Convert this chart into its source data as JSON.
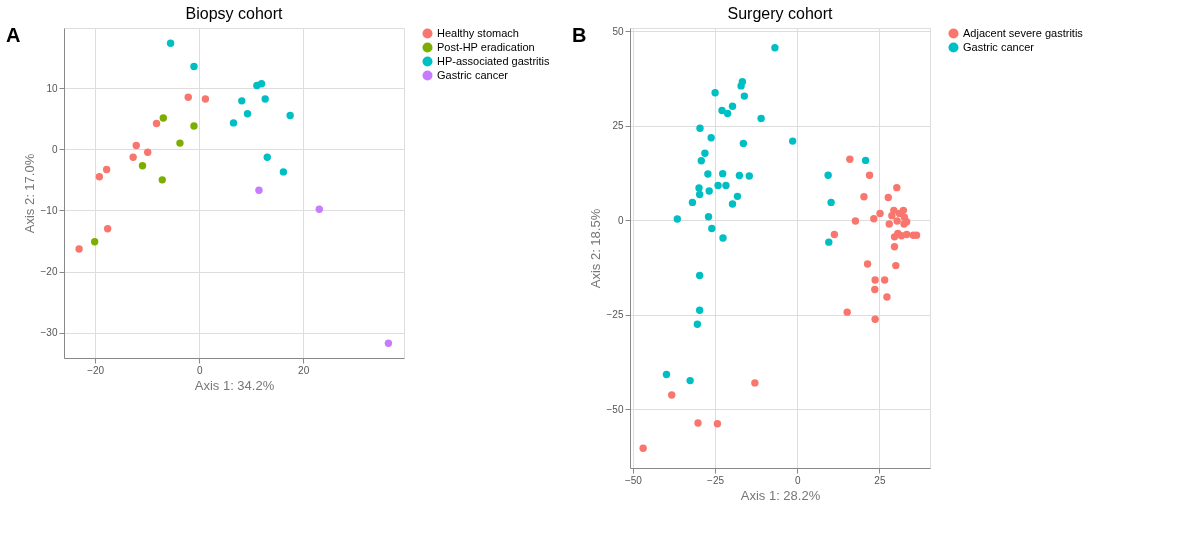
{
  "chart_data": [
    {
      "type": "scatter",
      "title": "Biopsy cohort",
      "xlabel": "Axis 1: 34.2%",
      "ylabel": "Axis 2: 17.0%",
      "annotations": [
        "A"
      ],
      "xlim": [
        -26,
        39.4
      ],
      "ylim": [
        -34.1,
        19.8
      ],
      "xticks": [
        -20,
        0,
        20
      ],
      "yticks": [
        -30,
        -20,
        -10,
        0,
        10
      ],
      "grid": true,
      "legend": "right",
      "marker": "circle",
      "series": [
        {
          "name": "Healthy stomach",
          "color": "#f8766d",
          "x": [
            -23.1,
            -19.2,
            -17.8,
            -17.6,
            -12.7,
            -12.1,
            -9.9,
            -8.2,
            -2.1,
            1.2
          ],
          "values": [
            -16.3,
            -4.5,
            -3.3,
            -13.0,
            -1.3,
            0.6,
            -0.5,
            4.2,
            8.5,
            8.2
          ]
        },
        {
          "name": "Post-HP eradication",
          "color": "#7cae00",
          "x": [
            -20.1,
            -10.9,
            -7.1,
            -6.9,
            -3.7,
            -1.0
          ],
          "values": [
            -15.1,
            -2.7,
            -5.0,
            5.1,
            1.0,
            3.8
          ]
        },
        {
          "name": "HP-associated gastritis",
          "color": "#00bfc4",
          "x": [
            -5.5,
            -1.0,
            6.6,
            8.2,
            9.3,
            11.1,
            12.0,
            12.7,
            13.1,
            16.2,
            17.5
          ],
          "values": [
            17.3,
            13.5,
            4.3,
            7.9,
            5.8,
            10.4,
            10.7,
            8.2,
            -1.3,
            -3.7,
            5.5
          ]
        },
        {
          "name": "Gastric cancer",
          "color": "#c77cff",
          "x": [
            11.5,
            23.1,
            36.4
          ],
          "values": [
            -6.7,
            -9.8,
            -31.7
          ]
        }
      ]
    },
    {
      "type": "scatter",
      "title": "Surgery cohort",
      "xlabel": "Axis 1: 28.2%",
      "ylabel": "Axis 2: 18.5%",
      "annotations": [
        "B"
      ],
      "xlim": [
        -50.9,
        40.4
      ],
      "ylim": [
        -65.5,
        50.8
      ],
      "xticks": [
        -50,
        -25,
        0,
        25
      ],
      "yticks": [
        -50,
        -25,
        0,
        25,
        50
      ],
      "grid": true,
      "legend": "right",
      "marker": "circle",
      "series": [
        {
          "name": "Adjacent severe gastritis",
          "color": "#f8766d",
          "x": [
            -38.2,
            -12.9,
            -30.2,
            -24.3,
            -46.9,
            16.0,
            22.0,
            30.3,
            20.3,
            27.7,
            29.4,
            32.3,
            25.2,
            28.8,
            31.1,
            32.6,
            30.4,
            33.3,
            32.5,
            23.3,
            17.7,
            28.0,
            11.3,
            29.6,
            30.6,
            31.7,
            33.3,
            35.3,
            36.3,
            29.6,
            21.4,
            30.0,
            23.7,
            26.6,
            23.6,
            27.3,
            15.2,
            23.7
          ],
          "values": [
            -46.2,
            -43.0,
            -53.6,
            -53.8,
            -60.3,
            16.1,
            11.9,
            8.6,
            6.2,
            6.0,
            2.6,
            2.6,
            1.8,
            1.2,
            1.8,
            0.8,
            -0.2,
            -0.4,
            -1.0,
            0.4,
            -0.2,
            -1.0,
            -3.8,
            -4.4,
            -3.5,
            -4.1,
            -3.8,
            -4.0,
            -4.0,
            -7.0,
            -11.6,
            -12.0,
            -15.8,
            -15.8,
            -18.3,
            -20.3,
            -24.3,
            -26.2
          ]
        },
        {
          "name": "Gastric cancer",
          "color": "#00bfc4",
          "x": [
            -6.8,
            -16.7,
            -17.1,
            -16.1,
            -25.0,
            -22.9,
            -21.2,
            -19.7,
            -11.0,
            -29.6,
            -26.2,
            -16.4,
            -1.4,
            -28.1,
            -29.2,
            -27.2,
            -22.7,
            -17.6,
            -14.6,
            -24.1,
            -21.7,
            -29.9,
            -29.7,
            -26.8,
            -18.2,
            -19.7,
            -31.9,
            -36.5,
            -27.0,
            -26.0,
            -22.6,
            -29.7,
            -29.7,
            -30.4,
            -39.8,
            -32.6,
            20.8,
            9.4,
            10.3,
            9.6
          ],
          "values": [
            45.6,
            36.6,
            35.5,
            32.8,
            33.7,
            29.0,
            28.2,
            30.1,
            26.9,
            24.3,
            21.8,
            20.3,
            20.9,
            17.7,
            15.7,
            12.2,
            12.3,
            11.8,
            11.7,
            9.2,
            9.2,
            8.5,
            6.8,
            7.7,
            6.3,
            4.3,
            4.7,
            0.3,
            0.9,
            -2.2,
            -4.7,
            -14.6,
            -23.8,
            -27.5,
            -40.8,
            -42.4,
            15.8,
            11.9,
            4.7,
            -5.8
          ]
        }
      ]
    }
  ]
}
